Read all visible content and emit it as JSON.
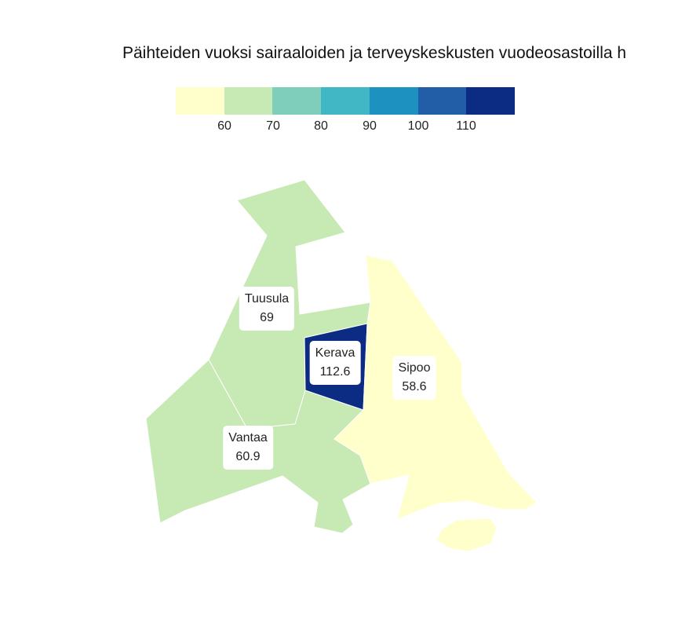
{
  "title": "Päihteiden vuoksi sairaaloiden ja terveyskeskusten vuodeosastoilla h",
  "legend": {
    "colors": [
      "#ffffcc",
      "#c7e9b4",
      "#7fcdbb",
      "#41b6c4",
      "#1d91c0",
      "#225ea8",
      "#0c2c84"
    ],
    "ticks": [
      "60",
      "70",
      "80",
      "90",
      "100",
      "110"
    ]
  },
  "municipalities": [
    {
      "name": "Tuusula",
      "value": "69",
      "fill": "#c7e9b4"
    },
    {
      "name": "Kerava",
      "value": "112.6",
      "fill": "#0c2c84"
    },
    {
      "name": "Sipoo",
      "value": "58.6",
      "fill": "#ffffcc"
    },
    {
      "name": "Vantaa",
      "value": "60.9",
      "fill": "#c7e9b4"
    }
  ]
}
